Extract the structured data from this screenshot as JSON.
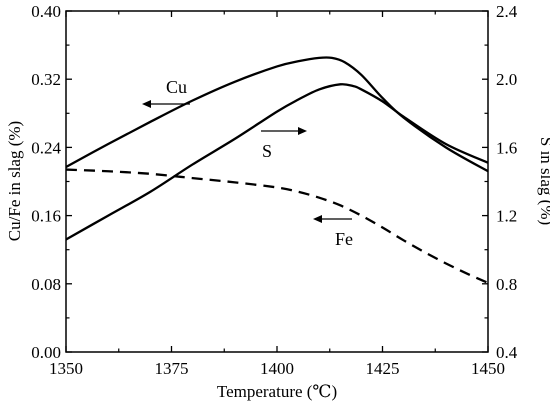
{
  "chart_data": {
    "type": "line",
    "xlabel": "Temperature (℃)",
    "ylabel_left": "Cu/Fe in slag (%)",
    "ylabel_right": "S in slag (%)",
    "xlim": [
      1350,
      1450
    ],
    "ylim_left": [
      0.0,
      0.4
    ],
    "ylim_right": [
      0.4,
      2.4
    ],
    "x_ticks": [
      "1350",
      "1375",
      "1400",
      "1425",
      "1450"
    ],
    "y_left_ticks": [
      "0.00",
      "0.08",
      "0.16",
      "0.24",
      "0.32",
      "0.40"
    ],
    "y_right_ticks": [
      "0.4",
      "0.8",
      "1.2",
      "1.6",
      "2.0",
      "2.4"
    ],
    "grid": false,
    "series": [
      {
        "name": "Cu",
        "axis": "left",
        "style": "solid",
        "x": [
          1350,
          1360,
          1370,
          1380,
          1390,
          1400,
          1405,
          1410,
          1413,
          1416,
          1420,
          1425,
          1430,
          1440,
          1450
        ],
        "values": [
          0.217,
          0.244,
          0.27,
          0.295,
          0.317,
          0.335,
          0.341,
          0.345,
          0.345,
          0.34,
          0.325,
          0.298,
          0.275,
          0.24,
          0.212
        ]
      },
      {
        "name": "S",
        "axis": "right",
        "style": "solid",
        "x": [
          1350,
          1360,
          1370,
          1380,
          1390,
          1400,
          1405,
          1410,
          1415,
          1418,
          1420,
          1425,
          1430,
          1440,
          1450
        ],
        "values": [
          1.06,
          1.2,
          1.34,
          1.5,
          1.65,
          1.81,
          1.88,
          1.94,
          1.97,
          1.96,
          1.94,
          1.87,
          1.78,
          1.62,
          1.51
        ]
      },
      {
        "name": "Fe",
        "axis": "left",
        "style": "dashed",
        "x": [
          1350,
          1360,
          1370,
          1380,
          1390,
          1400,
          1405,
          1410,
          1415,
          1420,
          1425,
          1430,
          1435,
          1440,
          1445,
          1450
        ],
        "values": [
          0.214,
          0.212,
          0.209,
          0.204,
          0.199,
          0.193,
          0.188,
          0.181,
          0.172,
          0.16,
          0.146,
          0.131,
          0.117,
          0.104,
          0.092,
          0.081
        ]
      }
    ],
    "annotations": [
      {
        "text": "Cu",
        "arrow": "left"
      },
      {
        "text": "S",
        "arrow": "right"
      },
      {
        "text": "Fe",
        "arrow": "left"
      }
    ]
  }
}
